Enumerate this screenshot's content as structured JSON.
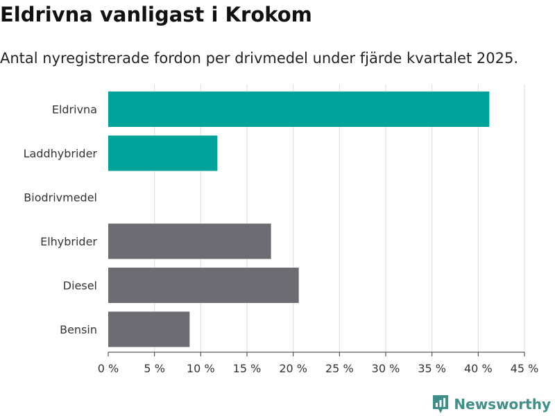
{
  "header": {
    "title": "Eldrivna vanligast i Krokom",
    "subtitle": "Antal nyregistrerade fordon per drivmedel under fjärde kvartalet 2025."
  },
  "colors": {
    "accent": "#00a399",
    "neutral": "#6d6c72",
    "grid": "#dcdcdc",
    "axis": "#333333",
    "brand": "#3f8f88"
  },
  "chart_data": {
    "type": "bar",
    "orientation": "horizontal",
    "title": "Eldrivna vanligast i Krokom",
    "subtitle": "Antal nyregistrerade fordon per drivmedel under fjärde kvartalet 2025.",
    "xlabel": "",
    "ylabel": "",
    "xlim": [
      0,
      45
    ],
    "x_ticks": [
      0,
      5,
      10,
      15,
      20,
      25,
      30,
      35,
      40,
      45
    ],
    "x_tick_labels": [
      "0 %",
      "5 %",
      "10 %",
      "15 %",
      "20 %",
      "25 %",
      "30 %",
      "35 %",
      "40 %",
      "45 %"
    ],
    "grid": true,
    "legend": "none",
    "categories": [
      "Eldrivna",
      "Laddhybrider",
      "Biodrivmedel",
      "Elhybrider",
      "Diesel",
      "Bensin"
    ],
    "values": [
      41.2,
      11.8,
      0,
      17.6,
      20.6,
      8.8
    ],
    "highlight": [
      true,
      true,
      true,
      false,
      false,
      false
    ]
  },
  "brand": {
    "name": "Newsworthy",
    "icon": "newsworthy-logo-icon"
  }
}
